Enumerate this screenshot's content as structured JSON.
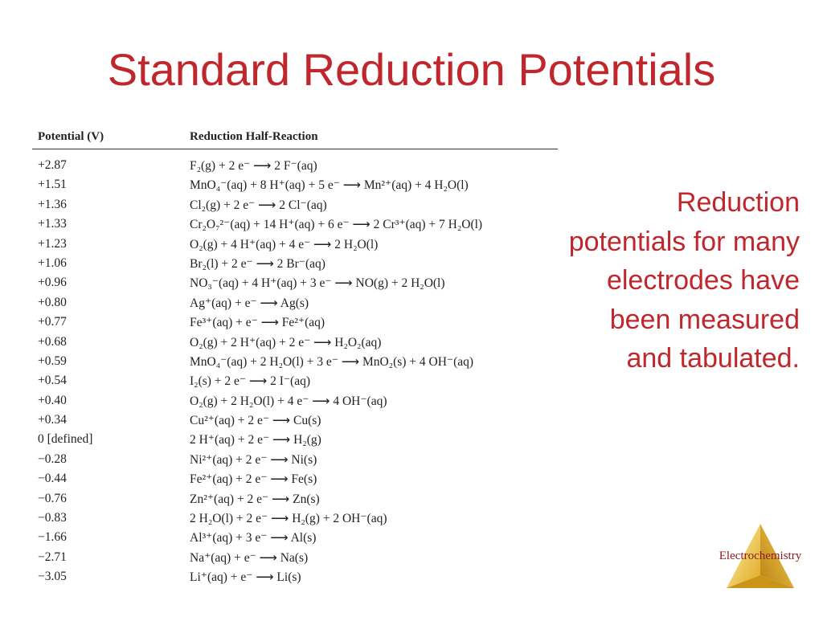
{
  "slide": {
    "title": "Standard Reduction Potentials",
    "side_note": "Reduction potentials for many electrodes have been measured and tabulated.",
    "logo_label": "Electrochemistry"
  },
  "table": {
    "headers": {
      "potential": "Potential (V)",
      "reaction": "Reduction Half-Reaction"
    },
    "rows": [
      {
        "potential": "+2.87",
        "reaction": "F₂(g) + 2 e⁻ ⟶ 2 F⁻(aq)"
      },
      {
        "potential": "+1.51",
        "reaction": "MnO₄⁻(aq) + 8 H⁺(aq) + 5 e⁻ ⟶ Mn²⁺(aq) + 4 H₂O(l)"
      },
      {
        "potential": "+1.36",
        "reaction": "Cl₂(g) + 2 e⁻ ⟶ 2 Cl⁻(aq)"
      },
      {
        "potential": "+1.33",
        "reaction": "Cr₂O₇²⁻(aq) + 14 H⁺(aq) + 6 e⁻ ⟶ 2 Cr³⁺(aq) + 7 H₂O(l)"
      },
      {
        "potential": "+1.23",
        "reaction": "O₂(g) + 4 H⁺(aq) + 4 e⁻ ⟶ 2 H₂O(l)"
      },
      {
        "potential": "+1.06",
        "reaction": "Br₂(l) + 2 e⁻ ⟶ 2 Br⁻(aq)"
      },
      {
        "potential": "+0.96",
        "reaction": "NO₃⁻(aq) + 4 H⁺(aq) + 3 e⁻ ⟶ NO(g) + 2 H₂O(l)"
      },
      {
        "potential": "+0.80",
        "reaction": "Ag⁺(aq) + e⁻ ⟶ Ag(s)"
      },
      {
        "potential": "+0.77",
        "reaction": "Fe³⁺(aq) + e⁻ ⟶ Fe²⁺(aq)"
      },
      {
        "potential": "+0.68",
        "reaction": "O₂(g) + 2 H⁺(aq) + 2 e⁻ ⟶ H₂O₂(aq)"
      },
      {
        "potential": "+0.59",
        "reaction": "MnO₄⁻(aq) + 2 H₂O(l) + 3 e⁻ ⟶ MnO₂(s) + 4 OH⁻(aq)"
      },
      {
        "potential": "+0.54",
        "reaction": "I₂(s) + 2 e⁻ ⟶ 2 I⁻(aq)"
      },
      {
        "potential": "+0.40",
        "reaction": "O₂(g) + 2 H₂O(l) + 4 e⁻ ⟶ 4 OH⁻(aq)"
      },
      {
        "potential": "+0.34",
        "reaction": "Cu²⁺(aq) + 2 e⁻ ⟶ Cu(s)"
      },
      {
        "potential": "0 [defined]",
        "reaction": "2 H⁺(aq) + 2 e⁻ ⟶ H₂(g)"
      },
      {
        "potential": "−0.28",
        "reaction": "Ni²⁺(aq) + 2 e⁻ ⟶ Ni(s)"
      },
      {
        "potential": "−0.44",
        "reaction": "Fe²⁺(aq) + 2 e⁻ ⟶ Fe(s)"
      },
      {
        "potential": "−0.76",
        "reaction": "Zn²⁺(aq) + 2 e⁻ ⟶ Zn(s)"
      },
      {
        "potential": "−0.83",
        "reaction": "2 H₂O(l) + 2 e⁻ ⟶ H₂(g) + 2 OH⁻(aq)"
      },
      {
        "potential": "−1.66",
        "reaction": "Al³⁺(aq) + 3 e⁻ ⟶ Al(s)"
      },
      {
        "potential": "−2.71",
        "reaction": "Na⁺(aq) + e⁻ ⟶ Na(s)"
      },
      {
        "potential": "−3.05",
        "reaction": "Li⁺(aq) + e⁻ ⟶ Li(s)"
      }
    ]
  },
  "colors": {
    "accent": "#c0272d",
    "logo_gold": "#e8b830",
    "logo_label": "#8b1a1a",
    "text": "#222222"
  },
  "icons": {
    "logo": "triangle-pyramid-icon"
  }
}
